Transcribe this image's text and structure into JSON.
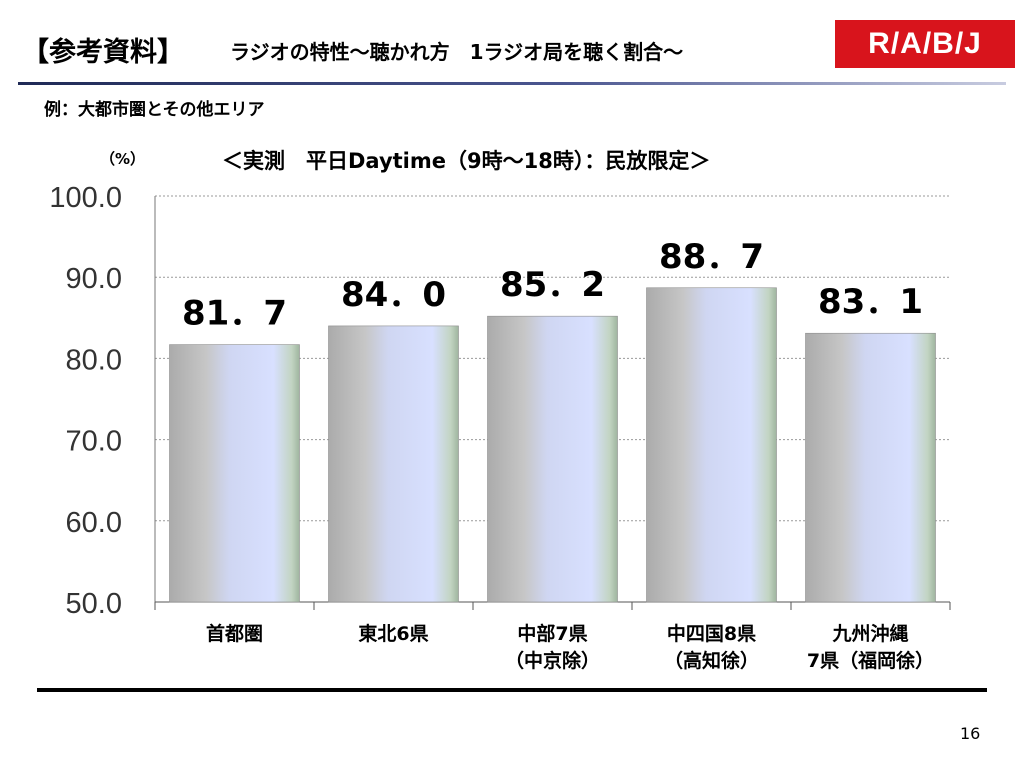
{
  "header": {
    "title_bracket": "【参考資料】",
    "title_rest": "ラジオの特性～聴かれ方　1ラジオ局を聴く割合～",
    "logo_text": "R/A/B/J",
    "subtitle": "例：大都市圏とその他エリア"
  },
  "page_number": "16",
  "colors": {
    "logo_bg": "#d8141c",
    "bar_left": "#b8b8b8",
    "bar_right": "#d4dcff",
    "grid": "#9a9a9a"
  },
  "chart_data": {
    "type": "bar",
    "title": "＜実測　平日Daytime（9時～18時）：民放限定＞",
    "unit_label": "（%）",
    "xlabel": "",
    "ylabel": "",
    "ylim": [
      50,
      100
    ],
    "yticks": [
      50,
      60,
      70,
      80,
      90,
      100
    ],
    "ytick_labels": [
      "50.0",
      "60.0",
      "70.0",
      "80.0",
      "90.0",
      "100.0"
    ],
    "grid": true,
    "categories": [
      [
        "首都圏"
      ],
      [
        "東北6県"
      ],
      [
        "中部7県",
        "（中京除）"
      ],
      [
        "中四国8県",
        "（高知徐）"
      ],
      [
        "九州沖縄",
        "7県（福岡徐）"
      ]
    ],
    "values": [
      81.7,
      84.0,
      85.2,
      88.7,
      83.1
    ],
    "value_labels": [
      "81．7",
      "84．0",
      "85．2",
      "88．7",
      "83．1"
    ]
  }
}
